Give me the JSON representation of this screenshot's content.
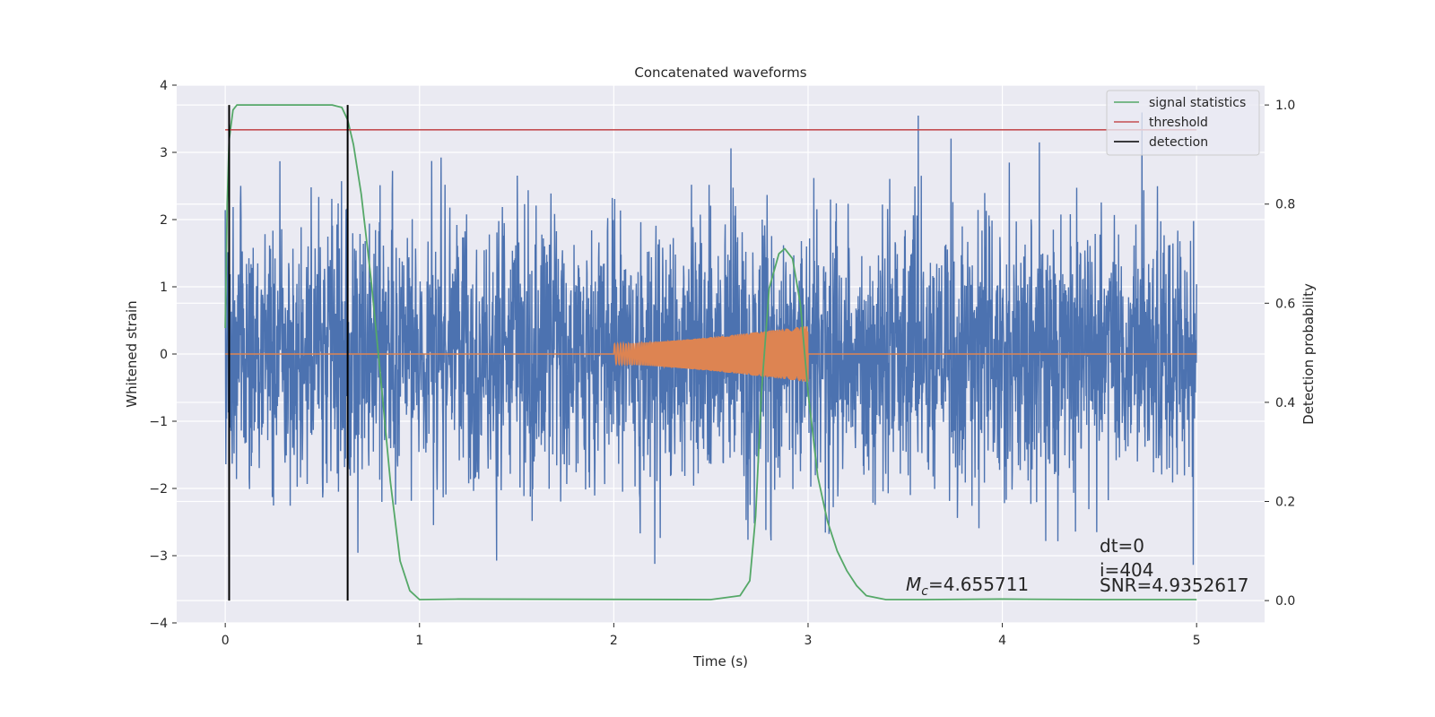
{
  "chart_data": {
    "type": "line",
    "title": "Concatenated waveforms",
    "xlabel": "Time (s)",
    "ylabel": "Whitened strain",
    "ylabel_right": "Detection probability",
    "xlim": [
      -0.25,
      5.35
    ],
    "ylim": [
      -4.0,
      4.0
    ],
    "ylim_right": [
      -0.045,
      1.04
    ],
    "grid": true,
    "legend_position": "top-right",
    "x_ticks": [
      0,
      1,
      2,
      3,
      4,
      5
    ],
    "x_tick_labels": [
      "0",
      "1",
      "2",
      "3",
      "4",
      "5"
    ],
    "y_ticks": [
      -4,
      -3,
      -2,
      -1,
      0,
      1,
      2,
      3,
      4
    ],
    "y_tick_labels": [
      "−4",
      "−3",
      "−2",
      "−1",
      "0",
      "1",
      "2",
      "3",
      "4"
    ],
    "y_ticks_right": [
      0.0,
      0.2,
      0.4,
      0.6,
      0.8,
      1.0
    ],
    "y_tick_labels_right": [
      "0.0",
      "0.2",
      "0.4",
      "0.6",
      "0.8",
      "1.0"
    ],
    "series": [
      {
        "kind": "noise",
        "color": "#4c72b0",
        "x_range": [
          0,
          5
        ],
        "typical_amplitude": 1.0,
        "peak_amplitude": 3.8
      },
      {
        "kind": "chirp",
        "color": "#dd8452",
        "x_range": [
          0,
          5
        ],
        "active_range": [
          2.0,
          3.0
        ],
        "amplitude_start": 0.15,
        "amplitude_end": 0.42
      },
      {
        "name": "signal statistics",
        "axis": "right",
        "color": "#55a868",
        "x": [
          0.0,
          0.01,
          0.02,
          0.04,
          0.06,
          0.1,
          0.55,
          0.6,
          0.63,
          0.66,
          0.7,
          0.75,
          0.8,
          0.85,
          0.9,
          0.95,
          1.0,
          1.2,
          2.5,
          2.65,
          2.7,
          2.73,
          2.76,
          2.8,
          2.85,
          2.88,
          2.92,
          2.96,
          3.0,
          3.05,
          3.1,
          3.15,
          3.2,
          3.25,
          3.3,
          3.4,
          3.6,
          4.0,
          4.5,
          5.0
        ],
        "y": [
          0.55,
          0.8,
          0.93,
          0.99,
          1.0,
          1.0,
          1.0,
          0.995,
          0.97,
          0.92,
          0.82,
          0.65,
          0.45,
          0.24,
          0.08,
          0.02,
          0.002,
          0.003,
          0.002,
          0.01,
          0.04,
          0.17,
          0.42,
          0.63,
          0.7,
          0.71,
          0.69,
          0.6,
          0.42,
          0.25,
          0.16,
          0.1,
          0.06,
          0.03,
          0.01,
          0.002,
          0.002,
          0.003,
          0.002,
          0.002
        ]
      },
      {
        "name": "threshold",
        "axis": "right",
        "color": "#c44e52",
        "x": [
          0,
          5
        ],
        "y": [
          0.95,
          0.95
        ]
      },
      {
        "name": "detection",
        "axis": "right",
        "color": "#000000",
        "vertical_lines": [
          {
            "x": 0.02,
            "y_range": [
              0.0,
              1.0
            ]
          },
          {
            "x": 0.63,
            "y_range": [
              0.0,
              1.0
            ]
          }
        ]
      }
    ],
    "legend": [
      "signal statistics",
      "threshold",
      "detection"
    ],
    "annotations": {
      "mc_prefix": "M",
      "mc_sub": "c",
      "mc_value": "=4.655711",
      "dt": "dt=0",
      "i": "i=404",
      "snr": "SNR=4.9352617"
    }
  }
}
